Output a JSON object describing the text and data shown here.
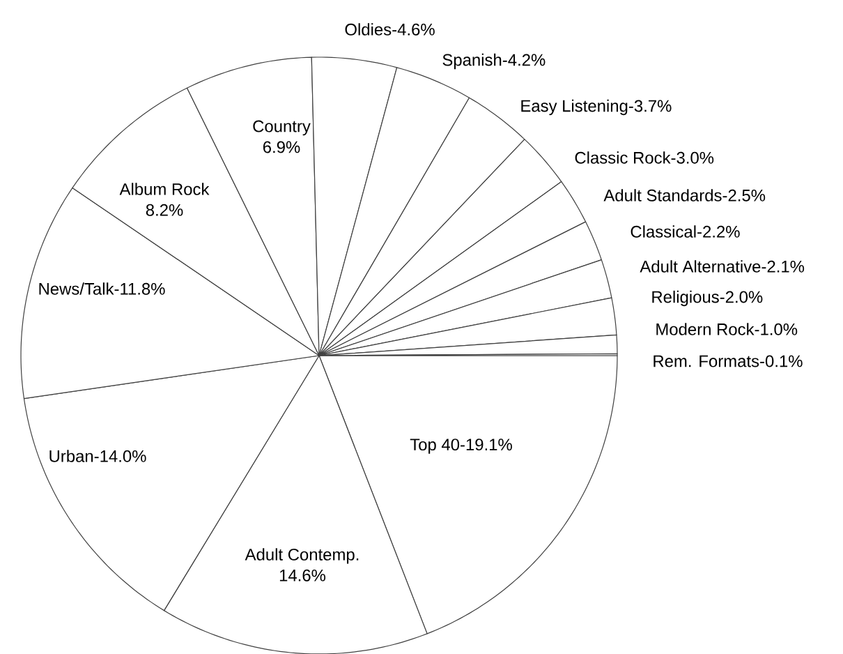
{
  "chart_data": {
    "type": "pie",
    "categories": [
      "Top 40-",
      "Adult Contemp.",
      "Urban-",
      "News/Talk-",
      "Album Rock",
      "Country",
      "Oldies-",
      "Spanish-",
      "Easy Listening-",
      "Classic Rock-",
      "Adult Standards-",
      "Classical-",
      "Adult Alternative-",
      "Religious-",
      "Modern Rock-",
      "Rem. Formats-"
    ],
    "values": [
      19.1,
      14.6,
      14.0,
      11.8,
      8.2,
      6.9,
      4.6,
      4.2,
      3.7,
      3.0,
      2.5,
      2.2,
      2.1,
      2.0,
      1.0,
      0.1
    ],
    "value_labels": [
      "19.1%",
      "14.6%",
      "14.0%",
      "11.8%",
      "8.2%",
      "6.9%",
      "4.6%",
      "4.2%",
      "3.7%",
      "3.0%",
      "2.5%",
      "2.2%",
      "2.1%",
      "2.0%",
      "1.0%",
      "0.1%"
    ],
    "colors": [
      "#ffffff",
      "#ffffff",
      "#ffffff",
      "#ffffff",
      "#ffffff",
      "#ffffff",
      "#ffffff",
      "#ffffff",
      "#ffffff",
      "#ffffff",
      "#ffffff",
      "#ffffff",
      "#ffffff",
      "#ffffff",
      "#ffffff",
      "#ffffff"
    ]
  }
}
